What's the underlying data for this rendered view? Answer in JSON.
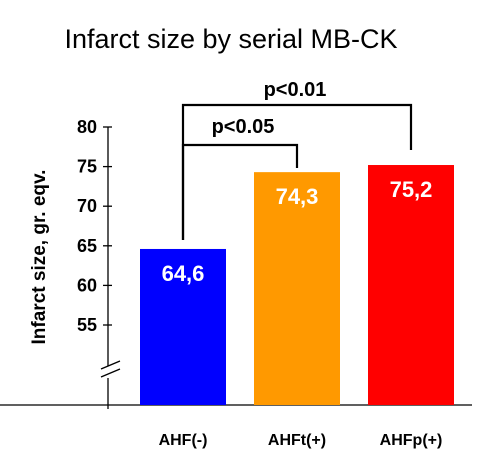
{
  "chart_data": {
    "type": "bar",
    "title": "Infarct size by serial MB-CK",
    "xlabel": "",
    "ylabel": "Infarct size, gr. eqv.",
    "categories": [
      "AHF(-)",
      "AHFt(+)",
      "AHFp(+)"
    ],
    "values": [
      64.6,
      74.3,
      75.2
    ],
    "value_labels": [
      "64,6",
      "74,3",
      "75,2"
    ],
    "colors": [
      "#0000ff",
      "#ff9900",
      "#ff0000"
    ],
    "yticks": [
      55,
      60,
      65,
      70,
      75,
      80
    ],
    "ylim": [
      55,
      80
    ],
    "axis_break": true,
    "grid": false,
    "comparisons": [
      {
        "from": 0,
        "to": 1,
        "label": "p<0.05"
      },
      {
        "from": 0,
        "to": 2,
        "label": "p<0.01"
      }
    ]
  }
}
